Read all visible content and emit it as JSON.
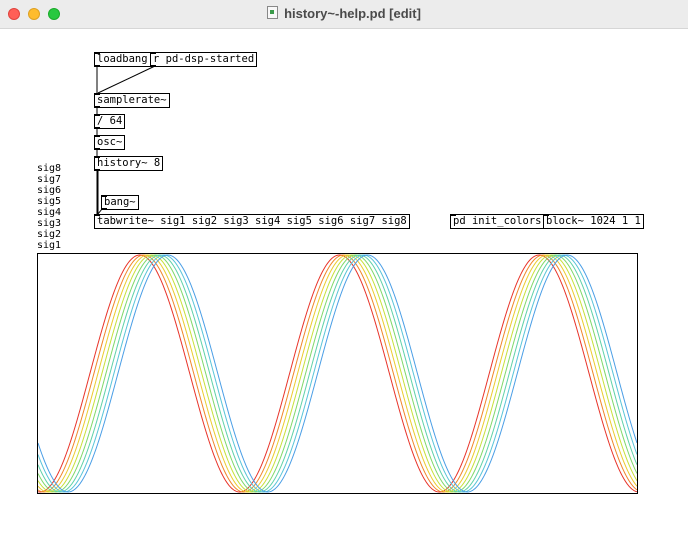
{
  "window": {
    "title": "history~-help.pd [edit]",
    "file_icon": "pd-document-icon"
  },
  "objects": {
    "loadbang": "loadbang",
    "r_dsp": "r pd-dsp-started",
    "samplerate": "samplerate~",
    "div": "/ 64",
    "osc": "osc~",
    "history": "history~ 8",
    "bang": "bang~",
    "tabwrite": "tabwrite~ sig1 sig2 sig3 sig4 sig5 sig6 sig7 sig8",
    "init_colors": "pd init_colors",
    "block": "block~ 1024 1 1"
  },
  "array_labels": [
    "sig8",
    "sig7",
    "sig6",
    "sig5",
    "sig4",
    "sig3",
    "sig2",
    "sig1"
  ],
  "plot": {
    "cycles": 3,
    "series": [
      {
        "name": "sig1",
        "color": "#e8342a",
        "delay": 0
      },
      {
        "name": "sig2",
        "color": "#f0862a",
        "delay": 1
      },
      {
        "name": "sig3",
        "color": "#eccb2e",
        "delay": 2
      },
      {
        "name": "sig4",
        "color": "#c7e03a",
        "delay": 3
      },
      {
        "name": "sig5",
        "color": "#7fd86a",
        "delay": 4
      },
      {
        "name": "sig6",
        "color": "#5fd1a8",
        "delay": 5
      },
      {
        "name": "sig7",
        "color": "#58c4d8",
        "delay": 6
      },
      {
        "name": "sig8",
        "color": "#4a9ee6",
        "delay": 7
      }
    ]
  }
}
